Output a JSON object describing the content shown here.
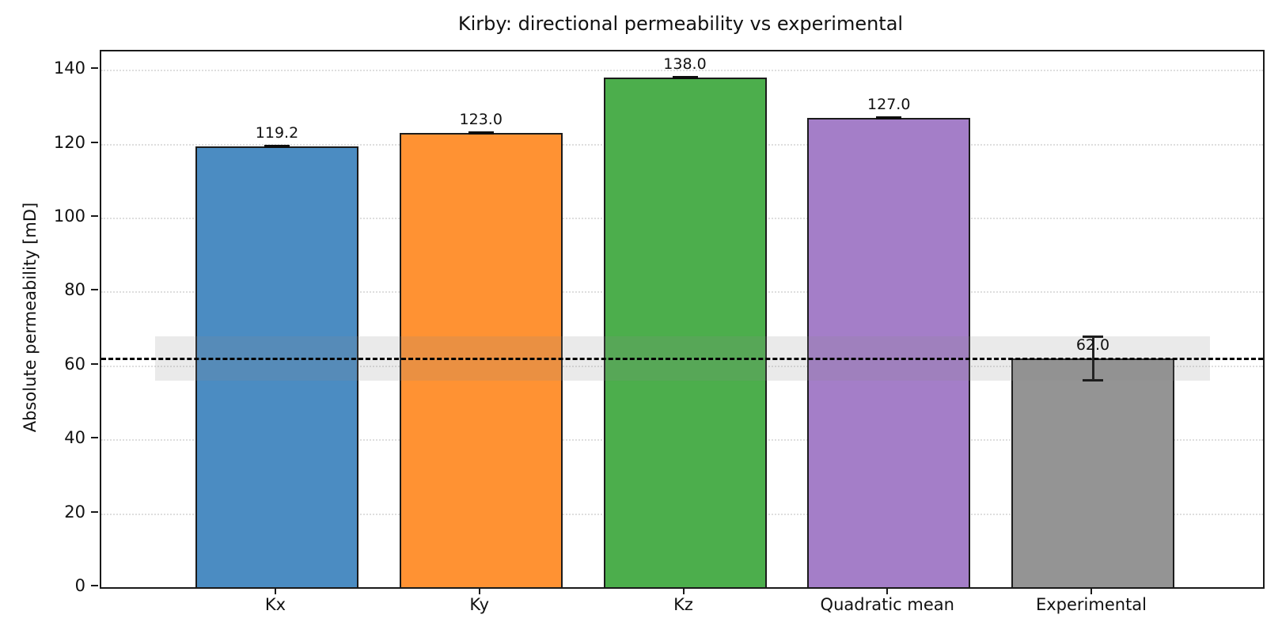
{
  "chart_data": {
    "type": "bar",
    "title": "Kirby: directional permeability vs experimental",
    "xlabel": "",
    "ylabel": "Absolute permeability [mD]",
    "categories": [
      "Kx",
      "Ky",
      "Kz",
      "Quadratic mean",
      "Experimental"
    ],
    "values": [
      119.2,
      123.0,
      138.0,
      127.0,
      62.0
    ],
    "value_labels": [
      "119.2",
      "123.0",
      "138.0",
      "127.0",
      "62.0"
    ],
    "bar_colors": [
      "#4b8cc2",
      "#ff9233",
      "#4cae4c",
      "#a47ec8",
      "#949494"
    ],
    "bar_edge_color": "#1b1b1b",
    "error_bars": [
      0,
      0,
      0,
      0,
      6.0
    ],
    "reference_line": {
      "value": 62.0,
      "color": "#000000",
      "style": "dashed"
    },
    "reference_band": {
      "min": 56.0,
      "max": 68.0,
      "color": "rgba(140,140,140,0.18)"
    },
    "ylim": [
      0,
      145
    ],
    "yticks": [
      0,
      20,
      40,
      60,
      80,
      100,
      120,
      140
    ],
    "grid": "horizontal-dotted",
    "legend": "none"
  }
}
